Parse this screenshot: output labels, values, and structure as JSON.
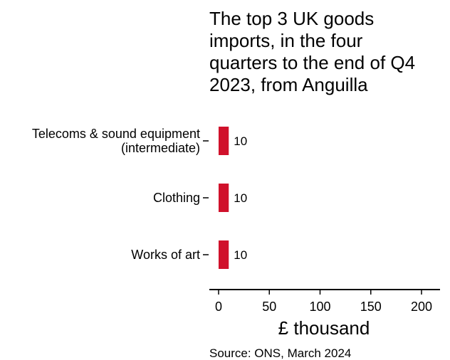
{
  "chart_data": {
    "type": "bar",
    "orientation": "horizontal",
    "title_lines": [
      "The top 3 UK goods",
      "imports, in the four",
      "quarters to the end of Q4",
      "2023, from Anguilla"
    ],
    "categories": [
      [
        "Telecoms & sound equipment",
        "(intermediate)"
      ],
      [
        "Clothing"
      ],
      [
        "Works of art"
      ]
    ],
    "values": [
      10,
      10,
      10
    ],
    "data_labels": [
      "10",
      "10",
      "10"
    ],
    "xlabel": "£ thousand",
    "xlim": [
      0,
      220
    ],
    "xticks": [
      0,
      50,
      100,
      150,
      200
    ],
    "xtick_labels": [
      "0",
      "50",
      "100",
      "150",
      "200"
    ],
    "bar_color": "#d0112b",
    "grid": false,
    "legend": "none",
    "source": "Source: ONS, March 2024"
  }
}
